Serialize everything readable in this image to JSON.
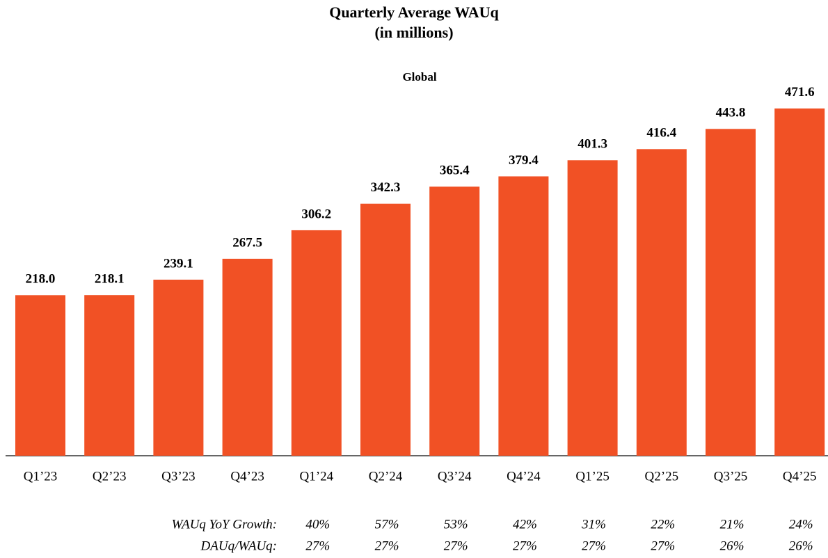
{
  "chart_data": {
    "type": "bar",
    "title": "Quarterly Average WAUq",
    "title_line2": "(in millions)",
    "subtitle": "Global",
    "categories": [
      "Q1’23",
      "Q2’23",
      "Q3’23",
      "Q4’23",
      "Q1’24",
      "Q2’24",
      "Q3’24",
      "Q4’24",
      "Q1’25",
      "Q2’25",
      "Q3’25",
      "Q4’25"
    ],
    "values": [
      218,
      218.1,
      239.1,
      267.5,
      306.2,
      342.3,
      365.4,
      379.4,
      401.3,
      416.4,
      443.8,
      471.6
    ],
    "value_labels": [
      "218.0",
      "218.1",
      "239.1",
      "267.5",
      "306.2",
      "342.3",
      "365.4",
      "379.4",
      "401.3",
      "416.4",
      "443.8",
      "471.6"
    ],
    "color": "#f15125",
    "ylim": [
      0,
      480
    ],
    "table": [
      {
        "label": "WAUq YoY Growth:",
        "values": [
          "40%",
          "57%",
          "53%",
          "42%",
          "31%",
          "22%",
          "21%",
          "24%"
        ]
      },
      {
        "label": "DAUq/WAUq:",
        "values": [
          "27%",
          "27%",
          "27%",
          "27%",
          "27%",
          "27%",
          "26%",
          "26%"
        ]
      }
    ]
  }
}
